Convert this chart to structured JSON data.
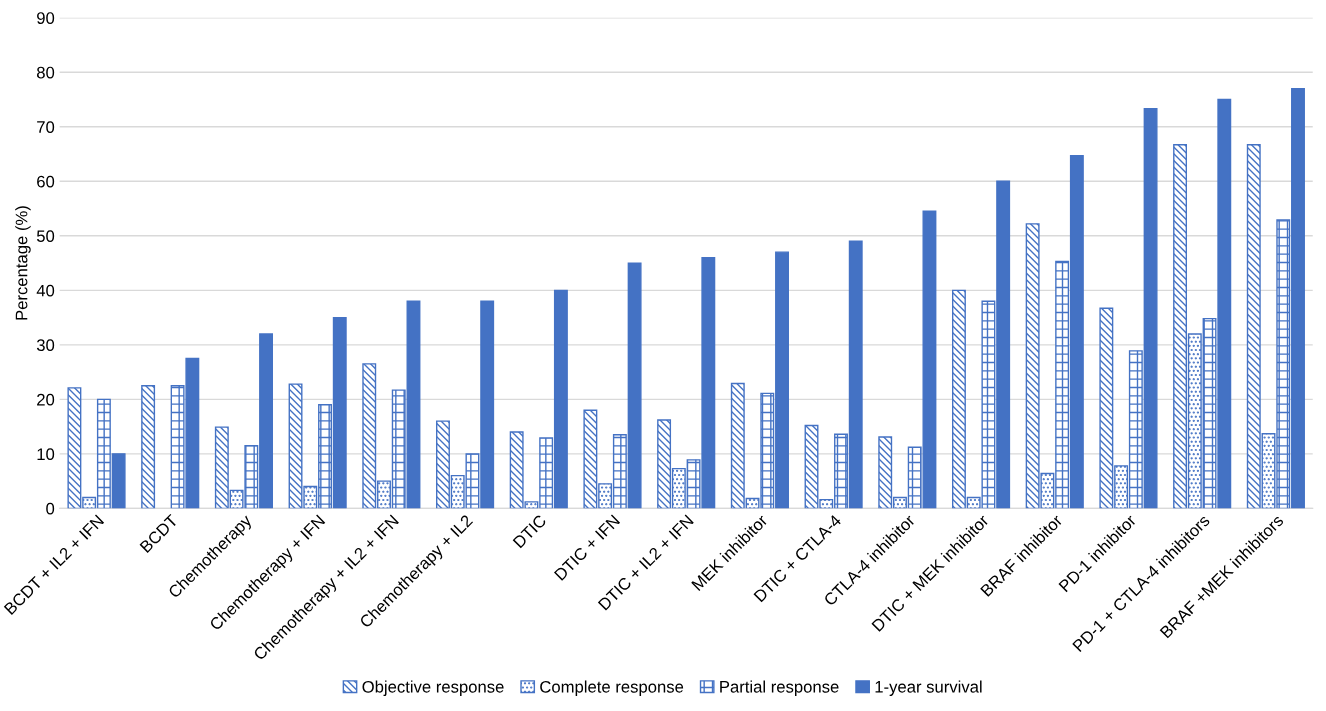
{
  "chart_data": {
    "type": "bar",
    "ylabel": "Percentage (%)",
    "categories": [
      "BCDT + IL2 + IFN",
      "BCDT",
      "Chemotherapy",
      "Chemotherapy + IFN",
      "Chemotherapy + IL2 + IFN",
      "Chemotherapy + IL2",
      "DTIC",
      "DTIC + IFN",
      "DTIC + IL2 + IFN",
      "MEK inhibitor",
      "DTIC + CTLA-4",
      "CTLA-4 inhibitor",
      "DTIC + MEK inhibitor",
      "BRAF inhibitor",
      "PD-1 inhibitor",
      "PD-1 + CTLA-4 inhibitors",
      "BRAF +MEK inhibitors"
    ],
    "series": [
      {
        "name": "Objective response",
        "color": "#4472c4",
        "values": [
          22.1,
          22.5,
          14.9,
          22.8,
          26.5,
          16,
          14,
          18,
          16.2,
          22.9,
          15.2,
          13.1,
          40,
          52.2,
          36.7,
          66.7,
          66.7
        ]
      },
      {
        "name": "Complete response",
        "color": "#4472c4",
        "values": [
          2,
          null,
          3.3,
          4,
          5,
          6,
          1.2,
          4.5,
          7.3,
          1.8,
          1.6,
          2,
          2,
          6.4,
          7.8,
          32,
          13.7
        ]
      },
      {
        "name": "Partial response",
        "color": "#4472c4",
        "values": [
          20,
          22.5,
          11.5,
          19,
          21.7,
          10,
          12.9,
          13.5,
          8.9,
          21.1,
          13.6,
          11.2,
          38,
          45.3,
          28.9,
          34.8,
          52.9
        ]
      },
      {
        "name": "1-year survival",
        "color": "#4472c4",
        "values": [
          10,
          27.5,
          32,
          35,
          38,
          38,
          40,
          45,
          46,
          47,
          49,
          54.5,
          60,
          64.7,
          73.3,
          75,
          77
        ]
      }
    ],
    "ylim": [
      0,
      90
    ],
    "yticks": [
      0,
      10,
      20,
      30,
      40,
      50,
      60,
      70,
      80,
      90
    ],
    "grid": "y",
    "legend": "bottom"
  }
}
